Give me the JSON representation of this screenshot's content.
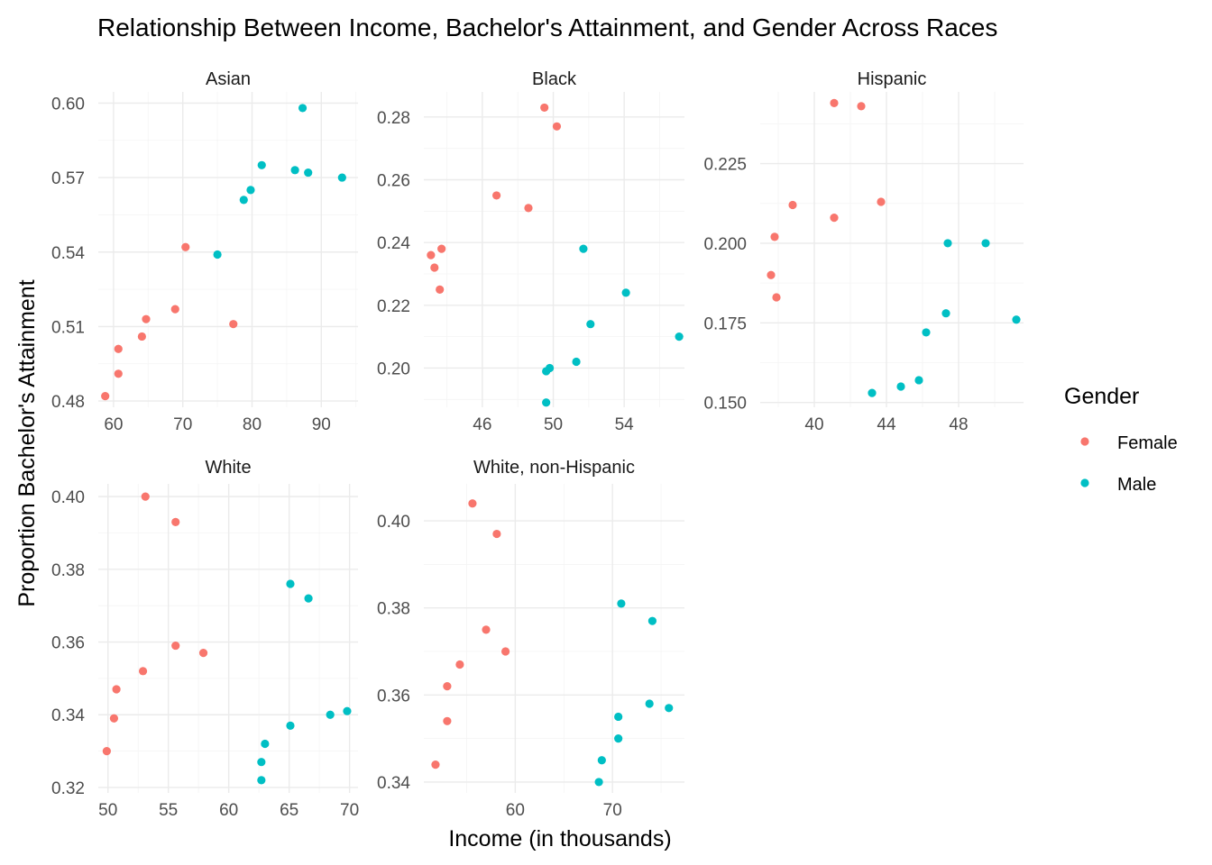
{
  "chart_data": {
    "type": "scatter",
    "title": "Relationship Between Income, Bachelor's Attainment, and Gender Across Races",
    "xlabel": "Income (in thousands)",
    "ylabel": "Proportion Bachelor's Attainment",
    "legend": {
      "title": "Gender",
      "placement": "right",
      "entries": [
        {
          "name": "Female",
          "color": "#F8766D"
        },
        {
          "name": "Male",
          "color": "#00BFC4"
        }
      ]
    },
    "grid": true,
    "facets": [
      {
        "name": "Asian",
        "xlim": [
          57.8,
          95.3
        ],
        "ylim": [
          0.4775,
          0.6045
        ],
        "xticks": [
          60,
          70,
          80,
          90
        ],
        "xtick_labels": [
          "60",
          "70",
          "80",
          "90"
        ],
        "yticks": [
          0.48,
          0.51,
          0.54,
          0.57,
          0.6
        ],
        "ytick_labels": [
          "0.48",
          "0.51",
          "0.54",
          "0.57",
          "0.60"
        ],
        "series": [
          {
            "name": "Female",
            "points": [
              [
                58.8,
                0.482
              ],
              [
                60.7,
                0.491
              ],
              [
                60.7,
                0.501
              ],
              [
                64.1,
                0.506
              ],
              [
                64.7,
                0.513
              ],
              [
                68.9,
                0.517
              ],
              [
                70.4,
                0.542
              ],
              [
                77.3,
                0.511
              ]
            ]
          },
          {
            "name": "Male",
            "points": [
              [
                75.0,
                0.539
              ],
              [
                78.8,
                0.561
              ],
              [
                79.8,
                0.565
              ],
              [
                81.4,
                0.575
              ],
              [
                86.2,
                0.573
              ],
              [
                88.1,
                0.572
              ],
              [
                93.0,
                0.57
              ],
              [
                87.3,
                0.598
              ]
            ]
          }
        ]
      },
      {
        "name": "Black",
        "xlim": [
          42.7,
          57.4
        ],
        "ylim": [
          0.1875,
          0.288
        ],
        "xticks": [
          46,
          50,
          54
        ],
        "xtick_labels": [
          "46",
          "50",
          "54"
        ],
        "yticks": [
          0.2,
          0.22,
          0.24,
          0.26,
          0.28
        ],
        "ytick_labels": [
          "0.20",
          "0.22",
          "0.24",
          "0.26",
          "0.28"
        ],
        "series": [
          {
            "name": "Female",
            "points": [
              [
                43.1,
                0.236
              ],
              [
                43.3,
                0.232
              ],
              [
                43.7,
                0.238
              ],
              [
                43.6,
                0.225
              ],
              [
                46.8,
                0.255
              ],
              [
                48.6,
                0.251
              ],
              [
                49.5,
                0.283
              ],
              [
                50.2,
                0.277
              ]
            ]
          },
          {
            "name": "Male",
            "points": [
              [
                49.6,
                0.199
              ],
              [
                49.8,
                0.2
              ],
              [
                49.6,
                0.189
              ],
              [
                51.3,
                0.202
              ],
              [
                51.7,
                0.238
              ],
              [
                52.1,
                0.214
              ],
              [
                54.1,
                0.224
              ],
              [
                57.1,
                0.21
              ]
            ]
          }
        ]
      },
      {
        "name": "Hispanic",
        "xlim": [
          37.0,
          51.6
        ],
        "ylim": [
          0.1485,
          0.2475
        ],
        "xticks": [
          40,
          44,
          48
        ],
        "xtick_labels": [
          "40",
          "44",
          "48"
        ],
        "yticks": [
          0.15,
          0.175,
          0.2,
          0.225
        ],
        "ytick_labels": [
          "0.150",
          "0.175",
          "0.200",
          "0.225"
        ],
        "series": [
          {
            "name": "Female",
            "points": [
              [
                37.6,
                0.19
              ],
              [
                37.8,
                0.202
              ],
              [
                37.9,
                0.183
              ],
              [
                38.8,
                0.212
              ],
              [
                41.1,
                0.208
              ],
              [
                41.1,
                0.244
              ],
              [
                42.6,
                0.243
              ],
              [
                43.7,
                0.213
              ]
            ]
          },
          {
            "name": "Male",
            "points": [
              [
                43.2,
                0.153
              ],
              [
                44.8,
                0.155
              ],
              [
                45.8,
                0.157
              ],
              [
                46.2,
                0.172
              ],
              [
                47.3,
                0.178
              ],
              [
                47.4,
                0.2
              ],
              [
                49.5,
                0.2
              ],
              [
                51.2,
                0.176
              ]
            ]
          }
        ]
      },
      {
        "name": "White",
        "xlim": [
          49.2,
          70.7
        ],
        "ylim": [
          0.3185,
          0.4035
        ],
        "xticks": [
          50,
          55,
          60,
          65,
          70
        ],
        "xtick_labels": [
          "50",
          "55",
          "60",
          "65",
          "70"
        ],
        "yticks": [
          0.32,
          0.34,
          0.36,
          0.38,
          0.4
        ],
        "ytick_labels": [
          "0.32",
          "0.34",
          "0.36",
          "0.38",
          "0.40"
        ],
        "series": [
          {
            "name": "Female",
            "points": [
              [
                49.9,
                0.33
              ],
              [
                50.5,
                0.339
              ],
              [
                50.7,
                0.347
              ],
              [
                52.9,
                0.352
              ],
              [
                53.1,
                0.4
              ],
              [
                55.6,
                0.359
              ],
              [
                55.6,
                0.393
              ],
              [
                57.9,
                0.357
              ]
            ]
          },
          {
            "name": "Male",
            "points": [
              [
                62.7,
                0.322
              ],
              [
                62.7,
                0.327
              ],
              [
                63.0,
                0.332
              ],
              [
                65.1,
                0.337
              ],
              [
                65.1,
                0.376
              ],
              [
                66.6,
                0.372
              ],
              [
                68.4,
                0.34
              ],
              [
                69.8,
                0.341
              ]
            ]
          }
        ]
      },
      {
        "name": "White, non-Hispanic",
        "xlim": [
          50.6,
          77.4
        ],
        "ylim": [
          0.3375,
          0.4085
        ],
        "xticks": [
          60,
          70
        ],
        "xtick_labels": [
          "60",
          "70"
        ],
        "yticks": [
          0.34,
          0.36,
          0.38,
          0.4
        ],
        "ytick_labels": [
          "0.34",
          "0.36",
          "0.38",
          "0.40"
        ],
        "series": [
          {
            "name": "Female",
            "points": [
              [
                51.8,
                0.344
              ],
              [
                53.0,
                0.354
              ],
              [
                53.0,
                0.362
              ],
              [
                54.3,
                0.367
              ],
              [
                55.6,
                0.404
              ],
              [
                57.0,
                0.375
              ],
              [
                58.1,
                0.397
              ],
              [
                59.0,
                0.37
              ]
            ]
          },
          {
            "name": "Male",
            "points": [
              [
                68.6,
                0.34
              ],
              [
                68.9,
                0.345
              ],
              [
                70.6,
                0.35
              ],
              [
                70.6,
                0.355
              ],
              [
                70.9,
                0.381
              ],
              [
                73.8,
                0.358
              ],
              [
                74.1,
                0.377
              ],
              [
                75.8,
                0.357
              ]
            ]
          }
        ]
      }
    ]
  }
}
